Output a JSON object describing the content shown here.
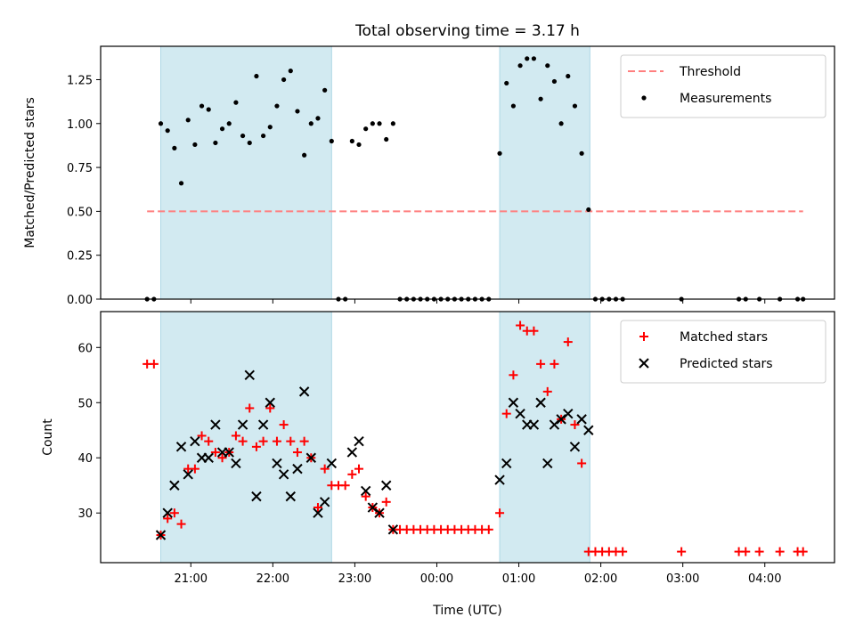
{
  "title": "Total observing time = 3.17 h",
  "colors": {
    "band": "#add8e6",
    "threshold": "#ff7f7f",
    "measurements": "#000000",
    "matched": "#ff0000",
    "predicted": "#000000"
  },
  "chart_data": [
    {
      "type": "scatter",
      "panel": "top",
      "ylabel": "Matched/Predicted stars",
      "xlabel": "",
      "ylim": [
        0,
        1.44
      ],
      "yticks": [
        0.0,
        0.25,
        0.5,
        0.75,
        1.0,
        1.25
      ],
      "ytick_labels": [
        "0.00",
        "0.25",
        "0.50",
        "0.75",
        "1.00",
        "1.25"
      ],
      "legend": "top-right",
      "observing_windows": [
        [
          "20:38",
          "22:43"
        ],
        [
          "00:46",
          "01:52"
        ]
      ],
      "threshold": {
        "name": "Threshold",
        "value": 0.5,
        "x_range": [
          "20:28",
          "04:28"
        ]
      },
      "series": [
        {
          "name": "Measurements",
          "points": [
            [
              "20:28",
              0
            ],
            [
              "20:33",
              0
            ],
            [
              "20:38",
              1.0
            ],
            [
              "20:43",
              0.96
            ],
            [
              "20:48",
              0.86
            ],
            [
              "20:53",
              0.66
            ],
            [
              "20:58",
              1.02
            ],
            [
              "21:03",
              0.88
            ],
            [
              "21:08",
              1.1
            ],
            [
              "21:13",
              1.08
            ],
            [
              "21:18",
              0.89
            ],
            [
              "21:23",
              0.97
            ],
            [
              "21:28",
              1.0
            ],
            [
              "21:33",
              1.12
            ],
            [
              "21:38",
              0.93
            ],
            [
              "21:43",
              0.89
            ],
            [
              "21:48",
              1.27
            ],
            [
              "21:53",
              0.93
            ],
            [
              "21:58",
              0.98
            ],
            [
              "22:03",
              1.1
            ],
            [
              "22:08",
              1.25
            ],
            [
              "22:13",
              1.3
            ],
            [
              "22:18",
              1.07
            ],
            [
              "22:23",
              0.82
            ],
            [
              "22:28",
              1.0
            ],
            [
              "22:33",
              1.03
            ],
            [
              "22:38",
              1.19
            ],
            [
              "22:43",
              0.9
            ],
            [
              "22:48",
              0
            ],
            [
              "22:53",
              0
            ],
            [
              "22:58",
              0.9
            ],
            [
              "23:03",
              0.88
            ],
            [
              "23:08",
              0.97
            ],
            [
              "23:13",
              1.0
            ],
            [
              "23:18",
              1.0
            ],
            [
              "23:23",
              0.91
            ],
            [
              "23:28",
              1.0
            ],
            [
              "23:33",
              0
            ],
            [
              "23:38",
              0
            ],
            [
              "23:43",
              0
            ],
            [
              "23:48",
              0
            ],
            [
              "23:53",
              0
            ],
            [
              "23:58",
              0
            ],
            [
              "00:03",
              0
            ],
            [
              "00:08",
              0
            ],
            [
              "00:13",
              0
            ],
            [
              "00:18",
              0
            ],
            [
              "00:23",
              0
            ],
            [
              "00:28",
              0
            ],
            [
              "00:33",
              0
            ],
            [
              "00:38",
              0
            ],
            [
              "00:46",
              0.83
            ],
            [
              "00:51",
              1.23
            ],
            [
              "00:56",
              1.1
            ],
            [
              "01:01",
              1.33
            ],
            [
              "01:06",
              1.37
            ],
            [
              "01:11",
              1.37
            ],
            [
              "01:16",
              1.14
            ],
            [
              "01:21",
              1.33
            ],
            [
              "01:26",
              1.24
            ],
            [
              "01:31",
              1.0
            ],
            [
              "01:36",
              1.27
            ],
            [
              "01:41",
              1.1
            ],
            [
              "01:46",
              0.83
            ],
            [
              "01:51",
              0.51
            ],
            [
              "01:56",
              0
            ],
            [
              "02:01",
              0
            ],
            [
              "02:06",
              0
            ],
            [
              "02:11",
              0
            ],
            [
              "02:16",
              0
            ],
            [
              "02:59",
              0
            ],
            [
              "03:41",
              0
            ],
            [
              "03:46",
              0
            ],
            [
              "03:56",
              0
            ],
            [
              "04:11",
              0
            ],
            [
              "04:24",
              0
            ],
            [
              "04:28",
              0
            ]
          ]
        }
      ]
    },
    {
      "type": "scatter",
      "panel": "bottom",
      "ylabel": "Count",
      "xlabel": "Time (UTC)",
      "ylim": [
        21,
        66.5
      ],
      "yticks": [
        30,
        40,
        50,
        60
      ],
      "ytick_labels": [
        "30",
        "40",
        "50",
        "60"
      ],
      "xticks": [
        "21:00",
        "22:00",
        "23:00",
        "00:00",
        "01:00",
        "02:00",
        "03:00",
        "04:00"
      ],
      "legend": "top-right",
      "observing_windows": [
        [
          "20:38",
          "22:43"
        ],
        [
          "00:46",
          "01:52"
        ]
      ],
      "series": [
        {
          "name": "Matched stars",
          "marker": "plus",
          "points": [
            [
              "20:28",
              57
            ],
            [
              "20:33",
              57
            ],
            [
              "20:38",
              26
            ],
            [
              "20:43",
              29
            ],
            [
              "20:48",
              30
            ],
            [
              "20:53",
              28
            ],
            [
              "20:58",
              38
            ],
            [
              "21:03",
              38
            ],
            [
              "21:08",
              44
            ],
            [
              "21:13",
              43
            ],
            [
              "21:18",
              41
            ],
            [
              "21:23",
              40
            ],
            [
              "21:28",
              41
            ],
            [
              "21:33",
              44
            ],
            [
              "21:38",
              43
            ],
            [
              "21:43",
              49
            ],
            [
              "21:48",
              42
            ],
            [
              "21:53",
              43
            ],
            [
              "21:58",
              49
            ],
            [
              "22:03",
              43
            ],
            [
              "22:08",
              46
            ],
            [
              "22:13",
              43
            ],
            [
              "22:18",
              41
            ],
            [
              "22:23",
              43
            ],
            [
              "22:28",
              40
            ],
            [
              "22:33",
              31
            ],
            [
              "22:38",
              38
            ],
            [
              "22:43",
              35
            ],
            [
              "22:48",
              35
            ],
            [
              "22:53",
              35
            ],
            [
              "22:58",
              37
            ],
            [
              "23:03",
              38
            ],
            [
              "23:08",
              33
            ],
            [
              "23:13",
              31
            ],
            [
              "23:18",
              30
            ],
            [
              "23:23",
              32
            ],
            [
              "23:28",
              27
            ],
            [
              "23:33",
              27
            ],
            [
              "23:38",
              27
            ],
            [
              "23:43",
              27
            ],
            [
              "23:48",
              27
            ],
            [
              "23:53",
              27
            ],
            [
              "23:58",
              27
            ],
            [
              "00:03",
              27
            ],
            [
              "00:08",
              27
            ],
            [
              "00:13",
              27
            ],
            [
              "00:18",
              27
            ],
            [
              "00:23",
              27
            ],
            [
              "00:28",
              27
            ],
            [
              "00:33",
              27
            ],
            [
              "00:38",
              27
            ],
            [
              "00:46",
              30
            ],
            [
              "00:51",
              48
            ],
            [
              "00:56",
              55
            ],
            [
              "01:01",
              64
            ],
            [
              "01:06",
              63
            ],
            [
              "01:11",
              63
            ],
            [
              "01:16",
              57
            ],
            [
              "01:21",
              52
            ],
            [
              "01:26",
              57
            ],
            [
              "01:31",
              47
            ],
            [
              "01:36",
              61
            ],
            [
              "01:41",
              46
            ],
            [
              "01:46",
              39
            ],
            [
              "01:51",
              23
            ],
            [
              "01:56",
              23
            ],
            [
              "02:01",
              23
            ],
            [
              "02:06",
              23
            ],
            [
              "02:11",
              23
            ],
            [
              "02:16",
              23
            ],
            [
              "02:59",
              23
            ],
            [
              "03:41",
              23
            ],
            [
              "03:46",
              23
            ],
            [
              "03:56",
              23
            ],
            [
              "04:11",
              23
            ],
            [
              "04:24",
              23
            ],
            [
              "04:28",
              23
            ]
          ]
        },
        {
          "name": "Predicted stars",
          "marker": "x",
          "points": [
            [
              "20:38",
              26
            ],
            [
              "20:43",
              30
            ],
            [
              "20:48",
              35
            ],
            [
              "20:53",
              42
            ],
            [
              "20:58",
              37
            ],
            [
              "21:03",
              43
            ],
            [
              "21:08",
              40
            ],
            [
              "21:13",
              40
            ],
            [
              "21:18",
              46
            ],
            [
              "21:23",
              41
            ],
            [
              "21:28",
              41
            ],
            [
              "21:33",
              39
            ],
            [
              "21:38",
              46
            ],
            [
              "21:43",
              55
            ],
            [
              "21:48",
              33
            ],
            [
              "21:53",
              46
            ],
            [
              "21:58",
              50
            ],
            [
              "22:03",
              39
            ],
            [
              "22:08",
              37
            ],
            [
              "22:13",
              33
            ],
            [
              "22:18",
              38
            ],
            [
              "22:23",
              52
            ],
            [
              "22:28",
              40
            ],
            [
              "22:33",
              30
            ],
            [
              "22:38",
              32
            ],
            [
              "22:43",
              39
            ],
            [
              "22:58",
              41
            ],
            [
              "23:03",
              43
            ],
            [
              "23:08",
              34
            ],
            [
              "23:13",
              31
            ],
            [
              "23:18",
              30
            ],
            [
              "23:23",
              35
            ],
            [
              "23:28",
              27
            ],
            [
              "00:46",
              36
            ],
            [
              "00:51",
              39
            ],
            [
              "00:56",
              50
            ],
            [
              "01:01",
              48
            ],
            [
              "01:06",
              46
            ],
            [
              "01:11",
              46
            ],
            [
              "01:16",
              50
            ],
            [
              "01:21",
              39
            ],
            [
              "01:26",
              46
            ],
            [
              "01:31",
              47
            ],
            [
              "01:36",
              48
            ],
            [
              "01:41",
              42
            ],
            [
              "01:46",
              47
            ],
            [
              "01:51",
              45
            ]
          ]
        }
      ]
    }
  ]
}
